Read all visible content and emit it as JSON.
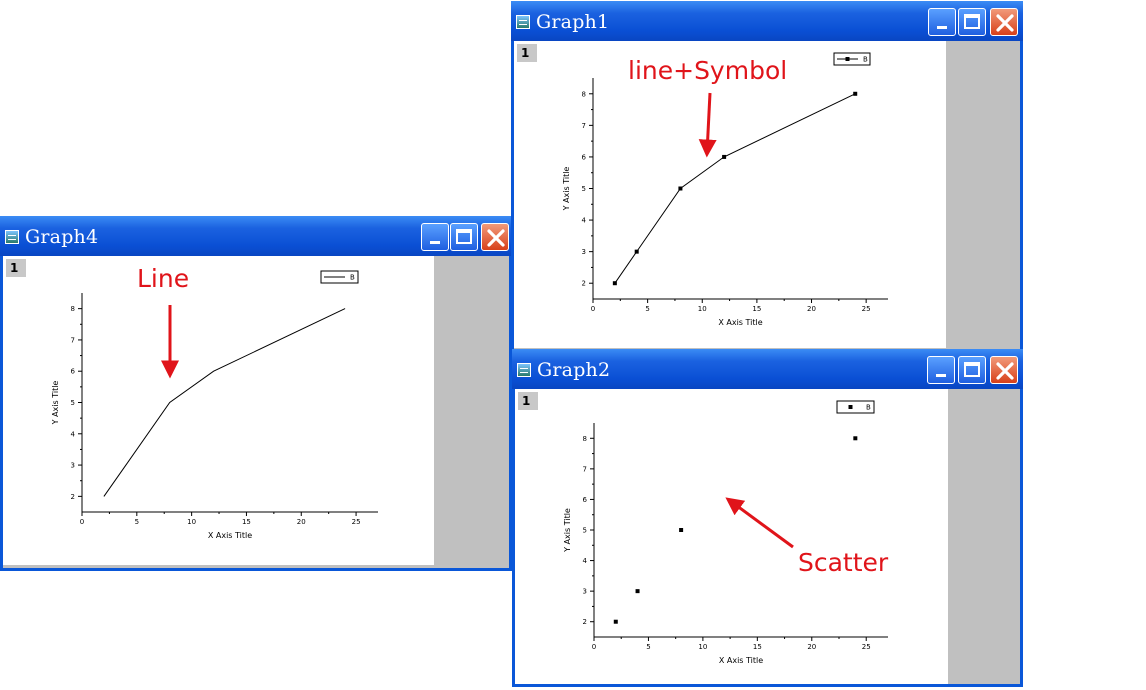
{
  "colors": {
    "titlebar": "#0a4fd4",
    "annotation": "#e0141a",
    "plot_line": "#000000",
    "workspace": "#c0c0c0"
  },
  "windows": [
    {
      "id": "graph4",
      "title": "Graph4",
      "layer_label": "1",
      "chart_data": {
        "type": "line",
        "series": [
          {
            "name": "B",
            "style": "line",
            "x": [
              2,
              4,
              8,
              12,
              24
            ],
            "y": [
              2,
              3,
              5,
              6,
              8
            ]
          }
        ],
        "xlabel": "X Axis Title",
        "ylabel": "Y Axis Title",
        "xlim": [
          0,
          27
        ],
        "ylim": [
          1.5,
          8.5
        ],
        "xticks": [
          0,
          5,
          10,
          15,
          20,
          25
        ],
        "yticks": [
          2,
          3,
          4,
          5,
          6,
          7,
          8
        ],
        "legend": "top-right",
        "grid": false
      }
    },
    {
      "id": "graph1",
      "title": "Graph1",
      "layer_label": "1",
      "chart_data": {
        "type": "line",
        "series": [
          {
            "name": "B",
            "style": "line+symbol",
            "x": [
              2,
              4,
              8,
              12,
              24
            ],
            "y": [
              2,
              3,
              5,
              6,
              8
            ]
          }
        ],
        "xlabel": "X Axis Title",
        "ylabel": "Y Axis Title",
        "xlim": [
          0,
          27
        ],
        "ylim": [
          1.5,
          8.5
        ],
        "xticks": [
          0,
          5,
          10,
          15,
          20,
          25
        ],
        "yticks": [
          2,
          3,
          4,
          5,
          6,
          7,
          8
        ],
        "legend": "top-right",
        "grid": false
      }
    },
    {
      "id": "graph2",
      "title": "Graph2",
      "layer_label": "1",
      "chart_data": {
        "type": "scatter",
        "series": [
          {
            "name": "B",
            "style": "scatter",
            "x": [
              2,
              4,
              8,
              24
            ],
            "y": [
              2,
              3,
              5,
              8
            ]
          }
        ],
        "xlabel": "X Axis Title",
        "ylabel": "Y Axis Title",
        "xlim": [
          0,
          27
        ],
        "ylim": [
          1.5,
          8.5
        ],
        "xticks": [
          0,
          5,
          10,
          15,
          20,
          25
        ],
        "yticks": [
          2,
          3,
          4,
          5,
          6,
          7,
          8
        ],
        "legend": "top-right",
        "grid": false
      }
    }
  ],
  "annotations": {
    "line": "Line",
    "line_symbol": "line+Symbol",
    "scatter": "Scatter"
  }
}
